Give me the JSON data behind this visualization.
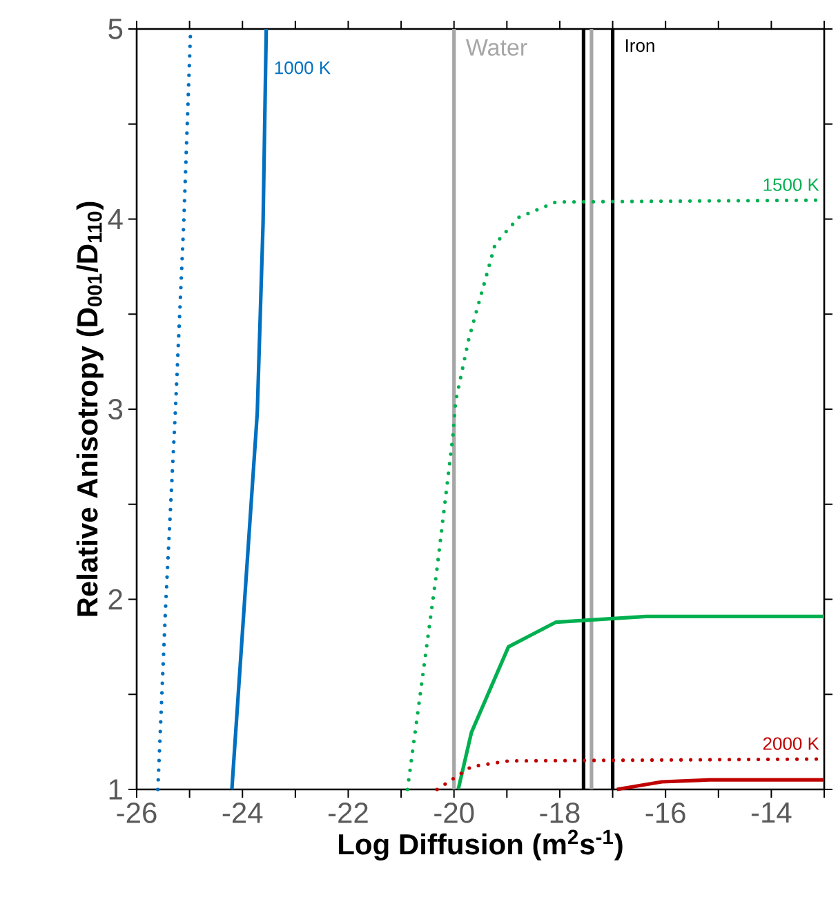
{
  "chart_data": {
    "type": "line",
    "xlabel": "Log Diffusion (m$^{2}$s$^{-1}$)",
    "ylabel": "Relative Anisotropy (D$_{001}$/D$_{110}$)",
    "xlim": [
      -26,
      -13
    ],
    "ylim": [
      1,
      5
    ],
    "xticks": [
      -26,
      {
        "value": -25,
        "label": null
      },
      -24,
      {
        "value": -23,
        "label": null
      },
      -22,
      {
        "value": -21,
        "label": null
      },
      -20,
      {
        "value": -19,
        "label": null
      },
      -18,
      {
        "value": -17,
        "label": null
      },
      -16,
      {
        "value": -15,
        "label": null
      },
      -14,
      {
        "value": -13,
        "label": null
      }
    ],
    "yticks": [
      1,
      {
        "value": 1.5,
        "label": null
      },
      2,
      {
        "value": 2.5,
        "label": null
      },
      3,
      {
        "value": 3.5,
        "label": null
      },
      4,
      {
        "value": 4.5,
        "label": null
      },
      5
    ],
    "marker": "none",
    "series": [
      {
        "color": "#0070c0",
        "line_style": "dotted",
        "x": [
          -25.6,
          -25.45,
          -25.27,
          -25.11,
          -24.98
        ],
        "values": [
          1,
          1.98,
          2.98,
          3.98,
          5
        ]
      },
      {
        "name": "1000 K",
        "color": "#0070c0",
        "line_style": "solid",
        "x": [
          -24.2,
          -24.14,
          -23.72,
          -23.61,
          -23.55
        ],
        "values": [
          1,
          1.25,
          2.98,
          3.98,
          5
        ]
      },
      {
        "name": "1500 K",
        "color": "#00b050",
        "line_style": "dotted",
        "x": [
          -20.88,
          -20.33,
          -20.02,
          -19.97,
          -19.72,
          -19.22,
          -18.77,
          -18.07,
          -13
        ],
        "values": [
          1,
          2.14,
          2.86,
          3.04,
          3.37,
          3.87,
          4.01,
          4.09,
          4.1
        ]
      },
      {
        "color": "#00b050",
        "line_style": "solid",
        "x": [
          -19.92,
          -19.67,
          -18.97,
          -18.07,
          -16.37,
          -13
        ],
        "values": [
          1,
          1.3,
          1.75,
          1.88,
          1.91,
          1.91
        ]
      },
      {
        "name": "2000 K",
        "color": "#c00000",
        "line_style": "dotted",
        "x": [
          -20.32,
          -19.67,
          -18.97,
          -13
        ],
        "values": [
          1,
          1.12,
          1.15,
          1.16
        ]
      },
      {
        "color": "#c00000",
        "line_style": "solid",
        "x": [
          -16.92,
          -16.07,
          -15.17,
          -13
        ],
        "values": [
          1,
          1.04,
          1.05,
          1.05
        ]
      }
    ],
    "ref_lines": [
      {
        "axis": "x",
        "value": -20,
        "label": "Water",
        "color": "#a6a6a6"
      },
      {
        "axis": "x",
        "value": -17.4,
        "label": null,
        "color": "#a6a6a6"
      },
      {
        "axis": "x",
        "value": -17.55,
        "label": null,
        "color": "#000000"
      },
      {
        "axis": "x",
        "value": -17,
        "label": "Iron",
        "color": "#000000"
      }
    ]
  }
}
